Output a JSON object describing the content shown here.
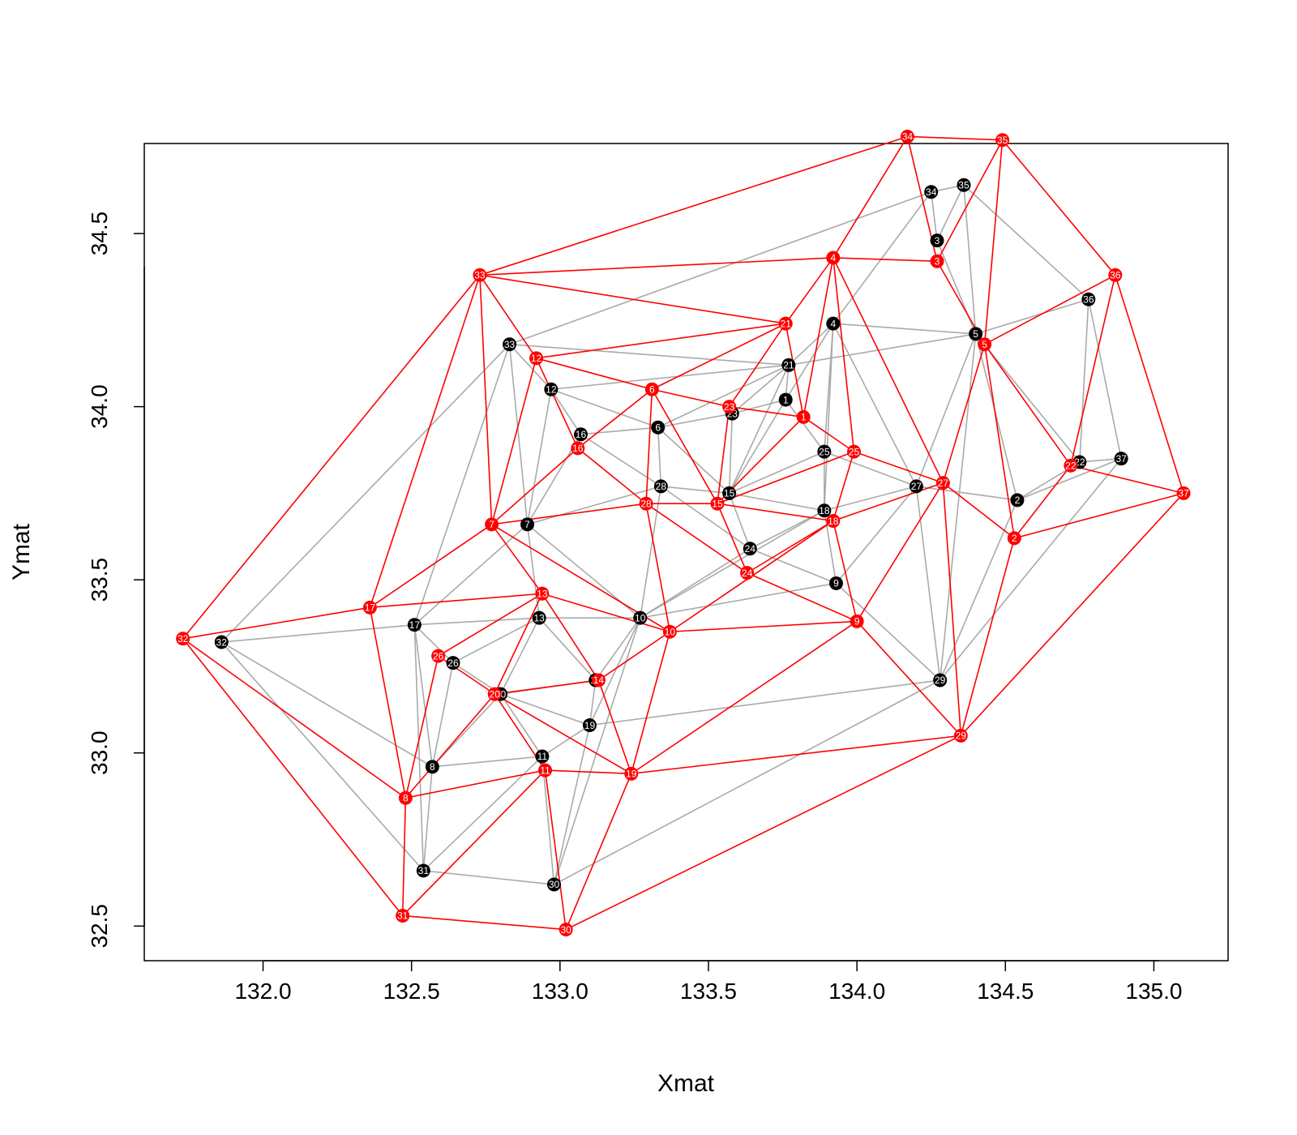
{
  "chart_data": {
    "type": "scatter",
    "title": "",
    "xlabel": "Xmat",
    "ylabel": "Ymat",
    "xlim": [
      131.6,
      135.25
    ],
    "ylim": [
      32.4,
      34.76
    ],
    "grid": false,
    "x_ticks": [
      132.0,
      132.5,
      133.0,
      133.5,
      134.0,
      134.5,
      135.0
    ],
    "x_tick_labels": [
      "132.0",
      "132.5",
      "133.0",
      "133.5",
      "134.0",
      "134.5",
      "135.0"
    ],
    "y_ticks": [
      32.5,
      33.0,
      33.5,
      34.0,
      34.5
    ],
    "y_tick_labels": [
      "32.5",
      "33.0",
      "33.5",
      "34.0",
      "34.5"
    ],
    "series": [
      {
        "color": "#000000",
        "edge_color": "#aaaaaa",
        "points": [
          {
            "id": "1",
            "x": 133.76,
            "y": 34.02
          },
          {
            "id": "2",
            "x": 134.54,
            "y": 33.73
          },
          {
            "id": "3",
            "x": 134.27,
            "y": 34.48
          },
          {
            "id": "4",
            "x": 133.92,
            "y": 34.24
          },
          {
            "id": "5",
            "x": 134.4,
            "y": 34.21
          },
          {
            "id": "6",
            "x": 133.33,
            "y": 33.94
          },
          {
            "id": "7",
            "x": 132.89,
            "y": 33.66
          },
          {
            "id": "8",
            "x": 132.57,
            "y": 32.96
          },
          {
            "id": "9",
            "x": 133.93,
            "y": 33.49
          },
          {
            "id": "10",
            "x": 133.27,
            "y": 33.39
          },
          {
            "id": "11",
            "x": 132.94,
            "y": 32.99
          },
          {
            "id": "12",
            "x": 132.97,
            "y": 34.05
          },
          {
            "id": "13",
            "x": 132.93,
            "y": 33.39
          },
          {
            "id": "14",
            "x": 133.12,
            "y": 33.21
          },
          {
            "id": "15",
            "x": 133.57,
            "y": 33.75
          },
          {
            "id": "16",
            "x": 133.07,
            "y": 33.92
          },
          {
            "id": "17",
            "x": 132.51,
            "y": 33.37
          },
          {
            "id": "18",
            "x": 133.89,
            "y": 33.7
          },
          {
            "id": "19",
            "x": 133.1,
            "y": 33.08
          },
          {
            "id": "20",
            "x": 132.8,
            "y": 33.17
          },
          {
            "id": "21",
            "x": 133.77,
            "y": 34.12
          },
          {
            "id": "22",
            "x": 134.75,
            "y": 33.84
          },
          {
            "id": "23",
            "x": 133.58,
            "y": 33.98
          },
          {
            "id": "24",
            "x": 133.64,
            "y": 33.59
          },
          {
            "id": "25",
            "x": 133.89,
            "y": 33.87
          },
          {
            "id": "26",
            "x": 132.64,
            "y": 33.26
          },
          {
            "id": "27",
            "x": 134.2,
            "y": 33.77
          },
          {
            "id": "28",
            "x": 133.34,
            "y": 33.77
          },
          {
            "id": "29",
            "x": 134.28,
            "y": 33.21
          },
          {
            "id": "30",
            "x": 132.98,
            "y": 32.62
          },
          {
            "id": "31",
            "x": 132.54,
            "y": 32.66
          },
          {
            "id": "32",
            "x": 131.86,
            "y": 33.32
          },
          {
            "id": "33",
            "x": 132.83,
            "y": 34.18
          },
          {
            "id": "34",
            "x": 134.25,
            "y": 34.62
          },
          {
            "id": "35",
            "x": 134.36,
            "y": 34.64
          },
          {
            "id": "36",
            "x": 134.78,
            "y": 34.31
          },
          {
            "id": "37",
            "x": 134.89,
            "y": 33.85
          }
        ],
        "edges": [
          [
            "32",
            "33"
          ],
          [
            "32",
            "17"
          ],
          [
            "32",
            "8"
          ],
          [
            "32",
            "31"
          ],
          [
            "33",
            "12"
          ],
          [
            "33",
            "21"
          ],
          [
            "33",
            "34"
          ],
          [
            "33",
            "17"
          ],
          [
            "33",
            "7"
          ],
          [
            "12",
            "21"
          ],
          [
            "12",
            "16"
          ],
          [
            "12",
            "7"
          ],
          [
            "12",
            "6"
          ],
          [
            "16",
            "6"
          ],
          [
            "16",
            "28"
          ],
          [
            "16",
            "7"
          ],
          [
            "6",
            "28"
          ],
          [
            "6",
            "21"
          ],
          [
            "6",
            "23"
          ],
          [
            "6",
            "15"
          ],
          [
            "21",
            "23"
          ],
          [
            "21",
            "15"
          ],
          [
            "21",
            "1"
          ],
          [
            "21",
            "4"
          ],
          [
            "1",
            "15"
          ],
          [
            "1",
            "23"
          ],
          [
            "1",
            "25"
          ],
          [
            "1",
            "4"
          ],
          [
            "4",
            "25"
          ],
          [
            "4",
            "27"
          ],
          [
            "4",
            "5"
          ],
          [
            "4",
            "34"
          ],
          [
            "4",
            "18"
          ],
          [
            "34",
            "35"
          ],
          [
            "34",
            "3"
          ],
          [
            "3",
            "35"
          ],
          [
            "3",
            "5"
          ],
          [
            "35",
            "5"
          ],
          [
            "35",
            "36"
          ],
          [
            "5",
            "36"
          ],
          [
            "5",
            "2"
          ],
          [
            "5",
            "22"
          ],
          [
            "5",
            "27"
          ],
          [
            "5",
            "29"
          ],
          [
            "5",
            "21"
          ],
          [
            "36",
            "22"
          ],
          [
            "36",
            "37"
          ],
          [
            "22",
            "37"
          ],
          [
            "22",
            "2"
          ],
          [
            "2",
            "37"
          ],
          [
            "2",
            "27"
          ],
          [
            "2",
            "29"
          ],
          [
            "29",
            "37"
          ],
          [
            "29",
            "27"
          ],
          [
            "29",
            "9"
          ],
          [
            "29",
            "19"
          ],
          [
            "29",
            "30"
          ],
          [
            "27",
            "18"
          ],
          [
            "27",
            "25"
          ],
          [
            "27",
            "9"
          ],
          [
            "25",
            "18"
          ],
          [
            "25",
            "15"
          ],
          [
            "18",
            "15"
          ],
          [
            "18",
            "24"
          ],
          [
            "18",
            "9"
          ],
          [
            "18",
            "10"
          ],
          [
            "15",
            "24"
          ],
          [
            "15",
            "28"
          ],
          [
            "15",
            "23"
          ],
          [
            "28",
            "24"
          ],
          [
            "28",
            "7"
          ],
          [
            "28",
            "10"
          ],
          [
            "24",
            "10"
          ],
          [
            "24",
            "9"
          ],
          [
            "9",
            "10"
          ],
          [
            "10",
            "7"
          ],
          [
            "10",
            "13"
          ],
          [
            "10",
            "14"
          ],
          [
            "10",
            "19"
          ],
          [
            "10",
            "30"
          ],
          [
            "7",
            "17"
          ],
          [
            "7",
            "13"
          ],
          [
            "17",
            "13"
          ],
          [
            "17",
            "26"
          ],
          [
            "17",
            "8"
          ],
          [
            "17",
            "31"
          ],
          [
            "13",
            "26"
          ],
          [
            "13",
            "20"
          ],
          [
            "13",
            "14"
          ],
          [
            "26",
            "20"
          ],
          [
            "26",
            "8"
          ],
          [
            "20",
            "8"
          ],
          [
            "20",
            "11"
          ],
          [
            "20",
            "19"
          ],
          [
            "20",
            "14"
          ],
          [
            "14",
            "19"
          ],
          [
            "19",
            "11"
          ],
          [
            "19",
            "30"
          ],
          [
            "11",
            "8"
          ],
          [
            "11",
            "30"
          ],
          [
            "11",
            "31"
          ],
          [
            "8",
            "31"
          ],
          [
            "31",
            "30"
          ]
        ]
      },
      {
        "color": "#ff0000",
        "edge_color": "#ff0000",
        "points": [
          {
            "id": "1",
            "x": 133.82,
            "y": 33.97
          },
          {
            "id": "2",
            "x": 134.53,
            "y": 33.62
          },
          {
            "id": "3",
            "x": 134.27,
            "y": 34.42
          },
          {
            "id": "4",
            "x": 133.92,
            "y": 34.43
          },
          {
            "id": "5",
            "x": 134.43,
            "y": 34.18
          },
          {
            "id": "6",
            "x": 133.31,
            "y": 34.05
          },
          {
            "id": "7",
            "x": 132.77,
            "y": 33.66
          },
          {
            "id": "8",
            "x": 132.48,
            "y": 32.87
          },
          {
            "id": "9",
            "x": 134.0,
            "y": 33.38
          },
          {
            "id": "10",
            "x": 133.37,
            "y": 33.35
          },
          {
            "id": "11",
            "x": 132.95,
            "y": 32.95
          },
          {
            "id": "12",
            "x": 132.92,
            "y": 34.14
          },
          {
            "id": "13",
            "x": 132.94,
            "y": 33.46
          },
          {
            "id": "14",
            "x": 133.13,
            "y": 33.21
          },
          {
            "id": "15",
            "x": 133.53,
            "y": 33.72
          },
          {
            "id": "16",
            "x": 133.06,
            "y": 33.88
          },
          {
            "id": "17",
            "x": 132.36,
            "y": 33.42
          },
          {
            "id": "18",
            "x": 133.92,
            "y": 33.67
          },
          {
            "id": "19",
            "x": 133.24,
            "y": 32.94
          },
          {
            "id": "20",
            "x": 132.78,
            "y": 33.17
          },
          {
            "id": "21",
            "x": 133.76,
            "y": 34.24
          },
          {
            "id": "22",
            "x": 134.72,
            "y": 33.83
          },
          {
            "id": "23",
            "x": 133.57,
            "y": 34.0
          },
          {
            "id": "24",
            "x": 133.63,
            "y": 33.52
          },
          {
            "id": "25",
            "x": 133.99,
            "y": 33.87
          },
          {
            "id": "26",
            "x": 132.59,
            "y": 33.28
          },
          {
            "id": "27",
            "x": 134.29,
            "y": 33.78
          },
          {
            "id": "28",
            "x": 133.29,
            "y": 33.72
          },
          {
            "id": "29",
            "x": 134.35,
            "y": 33.05
          },
          {
            "id": "30",
            "x": 133.02,
            "y": 32.49
          },
          {
            "id": "31",
            "x": 132.47,
            "y": 32.53
          },
          {
            "id": "32",
            "x": 131.73,
            "y": 33.33
          },
          {
            "id": "33",
            "x": 132.73,
            "y": 34.38
          },
          {
            "id": "34",
            "x": 134.17,
            "y": 34.78
          },
          {
            "id": "35",
            "x": 134.49,
            "y": 34.77
          },
          {
            "id": "36",
            "x": 134.87,
            "y": 34.38
          },
          {
            "id": "37",
            "x": 135.1,
            "y": 33.75
          }
        ],
        "edges": [
          [
            "32",
            "33"
          ],
          [
            "32",
            "17"
          ],
          [
            "32",
            "8"
          ],
          [
            "32",
            "31"
          ],
          [
            "33",
            "34"
          ],
          [
            "33",
            "4"
          ],
          [
            "33",
            "21"
          ],
          [
            "33",
            "12"
          ],
          [
            "33",
            "7"
          ],
          [
            "33",
            "17"
          ],
          [
            "34",
            "35"
          ],
          [
            "34",
            "4"
          ],
          [
            "34",
            "3"
          ],
          [
            "35",
            "3"
          ],
          [
            "35",
            "5"
          ],
          [
            "35",
            "36"
          ],
          [
            "36",
            "5"
          ],
          [
            "36",
            "22"
          ],
          [
            "36",
            "37"
          ],
          [
            "37",
            "22"
          ],
          [
            "37",
            "2"
          ],
          [
            "37",
            "29"
          ],
          [
            "4",
            "3"
          ],
          [
            "4",
            "21"
          ],
          [
            "4",
            "1"
          ],
          [
            "4",
            "25"
          ],
          [
            "4",
            "27"
          ],
          [
            "3",
            "5"
          ],
          [
            "5",
            "22"
          ],
          [
            "5",
            "27"
          ],
          [
            "5",
            "2"
          ],
          [
            "22",
            "2"
          ],
          [
            "2",
            "27"
          ],
          [
            "2",
            "29"
          ],
          [
            "21",
            "12"
          ],
          [
            "21",
            "6"
          ],
          [
            "21",
            "23"
          ],
          [
            "21",
            "1"
          ],
          [
            "12",
            "6"
          ],
          [
            "12",
            "16"
          ],
          [
            "12",
            "7"
          ],
          [
            "6",
            "23"
          ],
          [
            "6",
            "16"
          ],
          [
            "6",
            "28"
          ],
          [
            "6",
            "15"
          ],
          [
            "23",
            "15"
          ],
          [
            "1",
            "15"
          ],
          [
            "1",
            "25"
          ],
          [
            "23",
            "1"
          ],
          [
            "25",
            "27"
          ],
          [
            "25",
            "18"
          ],
          [
            "25",
            "15"
          ],
          [
            "27",
            "18"
          ],
          [
            "27",
            "9"
          ],
          [
            "27",
            "29"
          ],
          [
            "15",
            "18"
          ],
          [
            "15",
            "28"
          ],
          [
            "15",
            "24"
          ],
          [
            "18",
            "24"
          ],
          [
            "18",
            "9"
          ],
          [
            "18",
            "10"
          ],
          [
            "16",
            "7"
          ],
          [
            "16",
            "28"
          ],
          [
            "28",
            "7"
          ],
          [
            "28",
            "24"
          ],
          [
            "28",
            "10"
          ],
          [
            "24",
            "9"
          ],
          [
            "9",
            "10"
          ],
          [
            "9",
            "29"
          ],
          [
            "9",
            "19"
          ],
          [
            "7",
            "17"
          ],
          [
            "7",
            "13"
          ],
          [
            "7",
            "10"
          ],
          [
            "17",
            "13"
          ],
          [
            "17",
            "8"
          ],
          [
            "13",
            "10"
          ],
          [
            "13",
            "14"
          ],
          [
            "13",
            "26"
          ],
          [
            "13",
            "20"
          ],
          [
            "10",
            "14"
          ],
          [
            "10",
            "19"
          ],
          [
            "14",
            "20"
          ],
          [
            "14",
            "19"
          ],
          [
            "26",
            "20"
          ],
          [
            "26",
            "8"
          ],
          [
            "20",
            "8"
          ],
          [
            "20",
            "11"
          ],
          [
            "20",
            "19"
          ],
          [
            "11",
            "8"
          ],
          [
            "11",
            "19"
          ],
          [
            "11",
            "31"
          ],
          [
            "11",
            "30"
          ],
          [
            "19",
            "30"
          ],
          [
            "19",
            "29"
          ],
          [
            "8",
            "31"
          ],
          [
            "29",
            "30"
          ],
          [
            "31",
            "30"
          ]
        ]
      }
    ]
  }
}
